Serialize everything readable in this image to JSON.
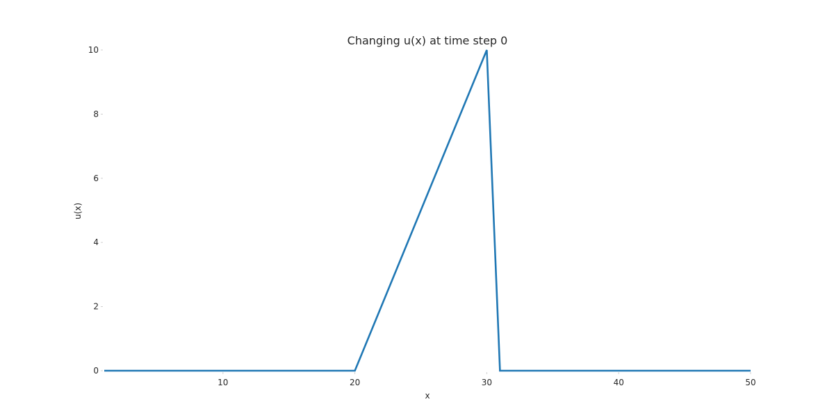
{
  "chart_data": {
    "type": "line",
    "title": "Changing u(x) at time step 0",
    "xlabel": "x",
    "ylabel": "u(x)",
    "xlim": [
      1,
      50
    ],
    "ylim": [
      0,
      10
    ],
    "xticks": [
      10,
      20,
      30,
      40,
      50
    ],
    "yticks": [
      0,
      2,
      4,
      6,
      8,
      10
    ],
    "grid": false,
    "series": [
      {
        "color": "#1f77b4",
        "x": [
          1,
          20,
          30,
          31,
          50
        ],
        "y": [
          0,
          0,
          10,
          0,
          0
        ]
      }
    ]
  }
}
